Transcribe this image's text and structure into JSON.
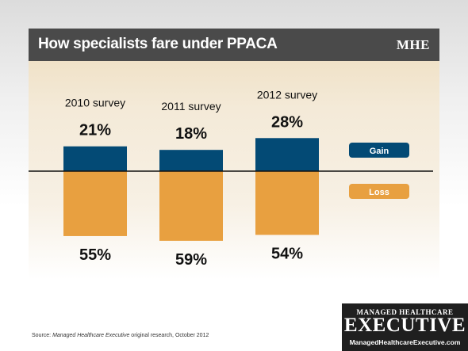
{
  "header": {
    "title": "How specialists fare under PPACA",
    "brand": "MHE"
  },
  "chart_data": {
    "type": "bar",
    "categories": [
      "2010 survey",
      "2011 survey",
      "2012 survey"
    ],
    "series": [
      {
        "name": "Gain",
        "values": [
          21,
          18,
          28
        ],
        "labels": [
          "21%",
          "18%",
          "28%"
        ],
        "color": "#034a75"
      },
      {
        "name": "Loss",
        "values": [
          55,
          59,
          54
        ],
        "labels": [
          "55%",
          "59%",
          "54%"
        ],
        "color": "#e8a040"
      }
    ],
    "legend": [
      "Gain",
      "Loss"
    ],
    "legend_position": "right",
    "baseline": 0
  },
  "footer": {
    "source_prefix": "Source: ",
    "source_italic": "Managed Healthcare Executive",
    "source_suffix": " original research, October 2012"
  },
  "logo": {
    "top": "MANAGED HEALTHCARE",
    "main": "EXECUTIVE",
    "url": "ManagedHealthcareExecutive.com"
  }
}
